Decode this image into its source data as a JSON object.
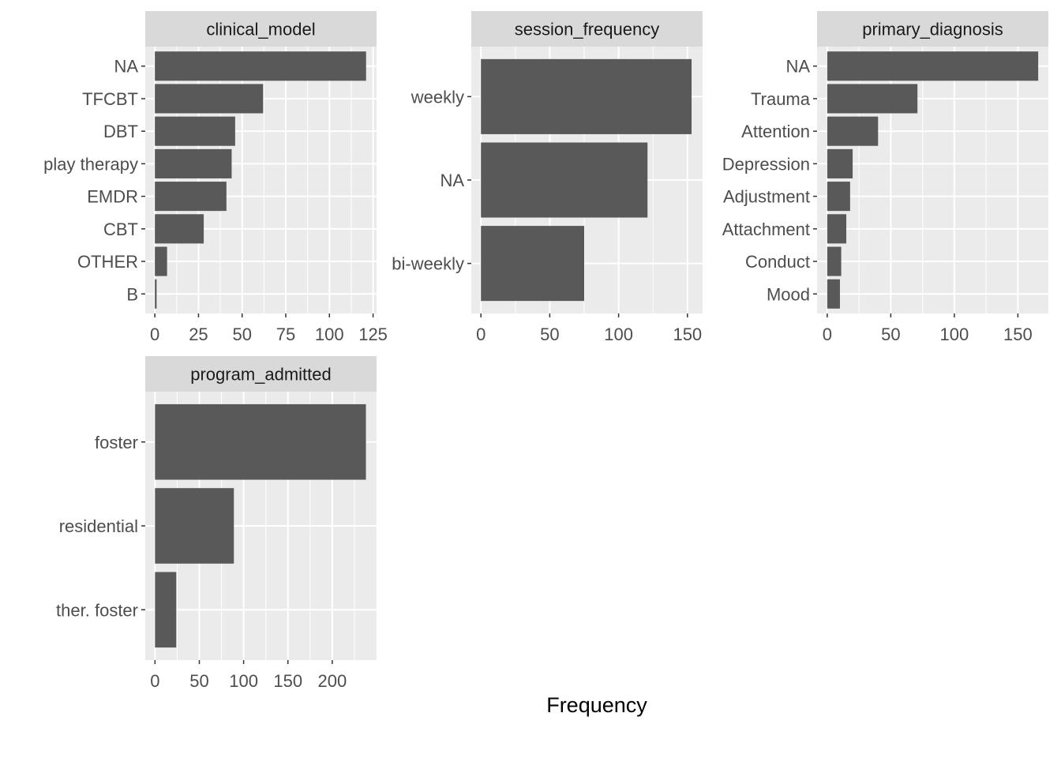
{
  "chart_data": {
    "type": "bar",
    "orientation": "horizontal",
    "xlabel": "Frequency",
    "ylabel": "",
    "grid": true,
    "colors": {
      "bar": "#595959",
      "panel": "#ebebeb",
      "strip": "#d9d9d9",
      "grid": "#ffffff"
    },
    "panels": [
      {
        "title": "clinical_model",
        "categories": [
          "NA",
          "TFCBT",
          "DBT",
          "play therapy",
          "EMDR",
          "CBT",
          "OTHER",
          "B"
        ],
        "values": [
          121,
          62,
          46,
          44,
          41,
          28,
          7,
          1
        ],
        "xlim": [
          -5.5,
          127
        ],
        "xticks": [
          0,
          25,
          50,
          75,
          100,
          125
        ]
      },
      {
        "title": "session_frequency",
        "categories": [
          "weekly",
          "NA",
          "bi-weekly"
        ],
        "values": [
          153,
          121,
          75
        ],
        "xlim": [
          -7,
          161
        ],
        "xticks": [
          0,
          50,
          100,
          150
        ]
      },
      {
        "title": "primary_diagnosis",
        "categories": [
          "NA",
          "Trauma",
          "Attention",
          "Depression",
          "Adjustment",
          "Attachment",
          "Conduct",
          "Mood"
        ],
        "values": [
          166,
          71,
          40,
          20,
          18,
          15,
          11,
          10
        ],
        "xlim": [
          -8,
          174
        ],
        "xticks": [
          0,
          50,
          100,
          150
        ]
      },
      {
        "title": "program_admitted",
        "categories": [
          "foster",
          "residential",
          "ther. foster"
        ],
        "values": [
          238,
          89,
          24
        ],
        "xlim": [
          -11,
          250
        ],
        "xticks": [
          0,
          50,
          100,
          150,
          200
        ]
      }
    ]
  }
}
